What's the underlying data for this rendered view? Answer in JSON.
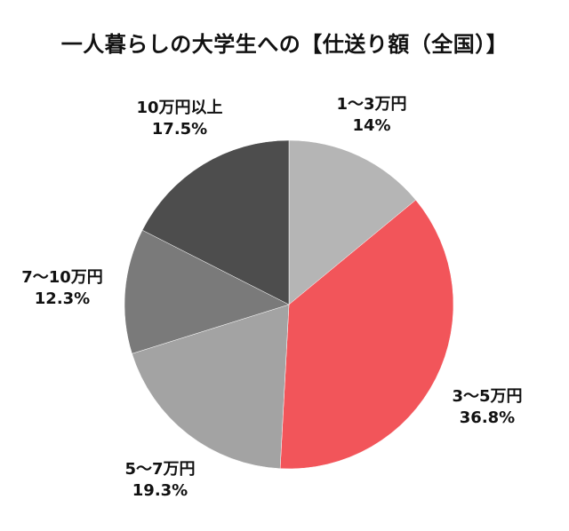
{
  "chart_data": {
    "type": "pie",
    "title": "一人暮らしの大学生への【仕送り額（全国）】",
    "slices": [
      {
        "label": "1〜3万円",
        "value": 14,
        "value_label": "14%",
        "color": "#b5b5b5"
      },
      {
        "label": "3〜5万円",
        "value": 36.8,
        "value_label": "36.8%",
        "color": "#f2555a"
      },
      {
        "label": "5〜7万円",
        "value": 19.3,
        "value_label": "19.3%",
        "color": "#a3a3a3"
      },
      {
        "label": "7〜10万円",
        "value": 12.3,
        "value_label": "12.3%",
        "color": "#7a7a7a"
      },
      {
        "label": "10万円以上",
        "value": 17.5,
        "value_label": "17.5%",
        "color": "#4d4d4d"
      }
    ],
    "start": "12 o'clock",
    "direction": "clockwise"
  }
}
